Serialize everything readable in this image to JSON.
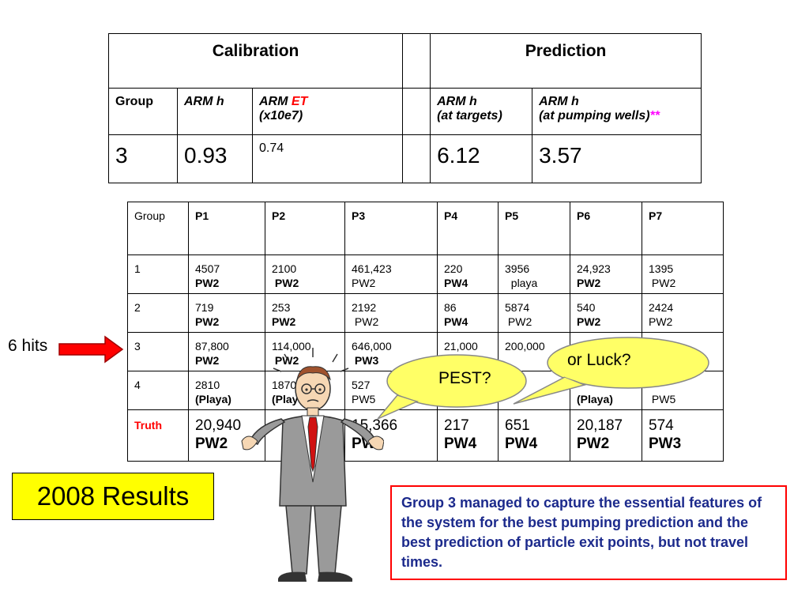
{
  "top_table": {
    "calibration": "Calibration",
    "prediction": "Prediction",
    "col_group": "Group",
    "col_arm_h": "ARM h",
    "col_arm_et_a": "ARM ",
    "col_arm_et_b": "ET",
    "col_arm_et_c": "(x10e7)",
    "col_arm_h_targets_a": "ARM h",
    "col_arm_h_targets_b": "(at targets)",
    "col_arm_h_wells_a": "ARM h",
    "col_arm_h_wells_b": "(at pumping wells)",
    "col_arm_h_wells_mark": "**",
    "row": {
      "group": "3",
      "arm_h": "0.93",
      "arm_et": "0.74",
      "pred_targets": "6.12",
      "pred_wells": "3.57"
    }
  },
  "bottom_table": {
    "headers": [
      "Group",
      "P1",
      "P2",
      "P3",
      "P4",
      "P5",
      "P6",
      "P7"
    ],
    "rows": [
      {
        "group": "1",
        "cells": [
          [
            "4507",
            "PW2"
          ],
          [
            "2100",
            "PW2"
          ],
          [
            "461,423",
            "PW2"
          ],
          [
            "220",
            "PW4"
          ],
          [
            "3956",
            "playa"
          ],
          [
            "24,923",
            "PW2"
          ],
          [
            "1395",
            "PW2"
          ]
        ]
      },
      {
        "group": "2",
        "cells": [
          [
            "719",
            "PW2"
          ],
          [
            "253",
            "PW2"
          ],
          [
            "2192",
            "PW2"
          ],
          [
            "86",
            "PW4"
          ],
          [
            "5874",
            "PW2"
          ],
          [
            "540",
            "PW2"
          ],
          [
            "2424",
            "PW2"
          ]
        ]
      },
      {
        "group": "3",
        "cells": [
          [
            "87,800",
            "PW2"
          ],
          [
            "114,000",
            "PW2"
          ],
          [
            "646,000",
            "PW3"
          ],
          [
            "21,000",
            ""
          ],
          [
            "200,000",
            ""
          ],
          [
            "",
            ""
          ],
          [
            "...,000",
            ""
          ]
        ]
      },
      {
        "group": "4",
        "cells": [
          [
            "2810",
            "(Playa)"
          ],
          [
            "1870",
            "(Playa"
          ],
          [
            "527",
            ""
          ],
          [
            "",
            ""
          ],
          [
            "",
            ""
          ],
          [
            "",
            "(Playa)"
          ],
          [
            "...00",
            "PW5"
          ]
        ]
      }
    ],
    "truth": {
      "label": "Truth",
      "cells": [
        [
          "20,940",
          "PW2"
        ],
        [
          "18...",
          ""
        ],
        [
          "15,366",
          "PW3"
        ],
        [
          "217",
          "PW4"
        ],
        [
          "651",
          "PW4"
        ],
        [
          "20,187",
          "PW2"
        ],
        [
          "574",
          "PW3"
        ]
      ]
    },
    "row4_p3_sub": "PW5"
  },
  "labels": {
    "hits": "6 hits",
    "results": "2008 Results",
    "pest": "PEST?",
    "luck": "or Luck?",
    "note": "Group 3 managed to capture the essential features of the system for the best pumping prediction and the best prediction of particle exit points, but not travel times."
  },
  "colors": {
    "accent_red": "#ff0000",
    "note_text": "#1c2a8c",
    "results_bg": "#ffff00",
    "bubble": "#ffff66"
  }
}
